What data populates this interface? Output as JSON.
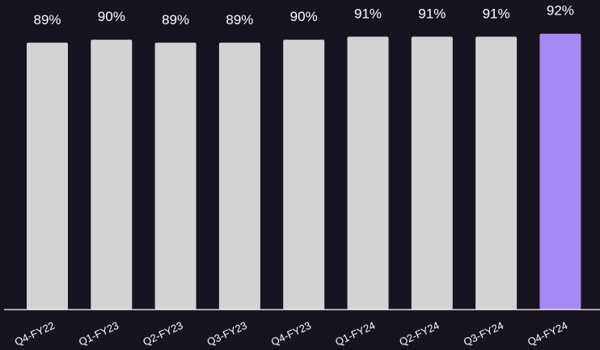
{
  "chart_data": {
    "type": "bar",
    "categories": [
      "Q4-FY22",
      "Q1-FY23",
      "Q2-FY23",
      "Q3-FY23",
      "Q4-FY23",
      "Q1-FY24",
      "Q2-FY24",
      "Q3-FY24",
      "Q4-FY24"
    ],
    "values": [
      89,
      90,
      89,
      89,
      90,
      91,
      91,
      91,
      92
    ],
    "data_labels": [
      "89%",
      "90%",
      "89%",
      "89%",
      "90%",
      "91%",
      "91%",
      "91%",
      "92%"
    ],
    "value_unit": "%",
    "ylim": [
      0,
      100
    ],
    "grid": false,
    "legend": "none",
    "highlight_index": 8,
    "colors": {
      "background": "#17141f",
      "bar": "#d3d3d3",
      "highlight": "#a888f5",
      "axis": "#ffffff",
      "text": "#ffffff"
    }
  }
}
